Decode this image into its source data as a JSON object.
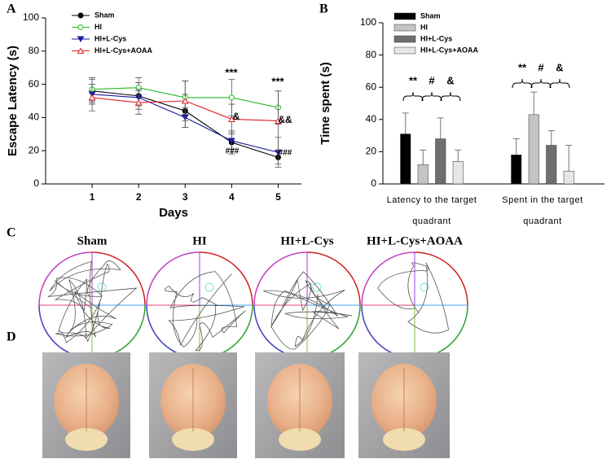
{
  "chart_data": [
    {
      "type": "line",
      "xlabel": "Days",
      "ylabel": "Escape Latency (s)",
      "x": [
        1,
        2,
        3,
        4,
        5
      ],
      "xlim": [
        0,
        5.5
      ],
      "xticks": [
        1,
        2,
        3,
        4,
        5
      ],
      "ylim": [
        0,
        100
      ],
      "yticks": [
        0,
        20,
        40,
        60,
        80,
        100
      ],
      "series": [
        {
          "name": "Sham",
          "color": "#000000",
          "marker": "filled-circle",
          "values": [
            56,
            53,
            44,
            25,
            16
          ],
          "errors": [
            7,
            8,
            10,
            7,
            4
          ]
        },
        {
          "name": "HI",
          "color": "#22bb22",
          "marker": "open-circle",
          "values": [
            57,
            58,
            52,
            52,
            46
          ],
          "errors": [
            7,
            6,
            10,
            11,
            10
          ]
        },
        {
          "name": "HI+L-Cys",
          "color": "#1a1aa0",
          "marker": "filled-triangle-down",
          "values": [
            54,
            52,
            40,
            26,
            19
          ],
          "errors": [
            6,
            5,
            6,
            5,
            9
          ]
        },
        {
          "name": "HI+L-Cys+AOAA",
          "color": "#e02020",
          "marker": "open-triangle-up",
          "values": [
            52,
            49,
            50,
            39,
            38
          ],
          "errors": [
            8,
            7,
            12,
            9,
            18
          ]
        }
      ],
      "annotations": [
        "***",
        "***",
        "&",
        "&&",
        "###",
        "###"
      ]
    },
    {
      "type": "bar",
      "ylabel": "Time spent (s)",
      "categories": [
        "Latency to the target quadrant",
        "Spent in the target quadrant"
      ],
      "ylim": [
        0,
        100
      ],
      "yticks": [
        0,
        20,
        40,
        60,
        80,
        100
      ],
      "series": [
        {
          "name": "Sham",
          "color": "#000000",
          "values": [
            31,
            18
          ],
          "errors": [
            13,
            10
          ]
        },
        {
          "name": "HI",
          "color": "#c4c4c4",
          "values": [
            12,
            43
          ],
          "errors": [
            9,
            14
          ]
        },
        {
          "name": "HI+L-Cys",
          "color": "#6e6e6e",
          "values": [
            28,
            24
          ],
          "errors": [
            13,
            9
          ]
        },
        {
          "name": "HI+L-Cys+AOAA",
          "color": "#e6e6e6",
          "values": [
            14,
            8
          ],
          "errors": [
            7,
            16
          ]
        }
      ],
      "annotations": [
        "**",
        "#",
        "&",
        "**",
        "#",
        "&"
      ]
    }
  ],
  "panel_labels": [
    "A",
    "B",
    "C",
    "D"
  ],
  "maze_titles": [
    "Sham",
    "HI",
    "HI+L-Cys",
    "HI+L-Cys+AOAA"
  ]
}
